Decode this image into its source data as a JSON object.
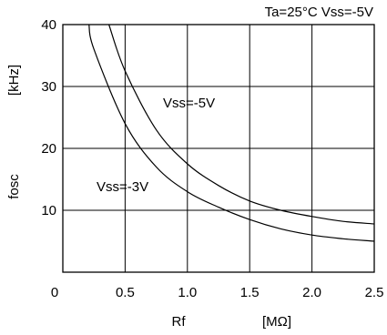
{
  "chart_data": {
    "type": "line",
    "title": "Ta=25°C Vss=-5V",
    "xlabel": "Rf",
    "xunit": "[MΩ]",
    "ylabel": "fosc",
    "yunit": "[kHz]",
    "xlim": [
      0,
      2.5
    ],
    "ylim": [
      0,
      40
    ],
    "xticks": [
      "0",
      "0.5",
      "1.0",
      "1.5",
      "2.0",
      "2.5"
    ],
    "yticks": [
      "10",
      "20",
      "30",
      "40"
    ],
    "grid": true,
    "series": [
      {
        "name": "Vss=-5V",
        "x": [
          0.37,
          0.5,
          0.75,
          1.0,
          1.25,
          1.5,
          1.75,
          2.0,
          2.25,
          2.5
        ],
        "y": [
          40,
          32.5,
          23,
          17.5,
          14,
          11.5,
          10,
          9,
          8.2,
          7.8
        ]
      },
      {
        "name": "Vss=-3V",
        "x": [
          0.21,
          0.25,
          0.5,
          0.75,
          1.0,
          1.25,
          1.5,
          1.75,
          2.0,
          2.25,
          2.5
        ],
        "y": [
          40,
          36,
          24,
          17,
          13,
          10.5,
          8.5,
          7,
          6,
          5.4,
          5
        ]
      }
    ]
  }
}
